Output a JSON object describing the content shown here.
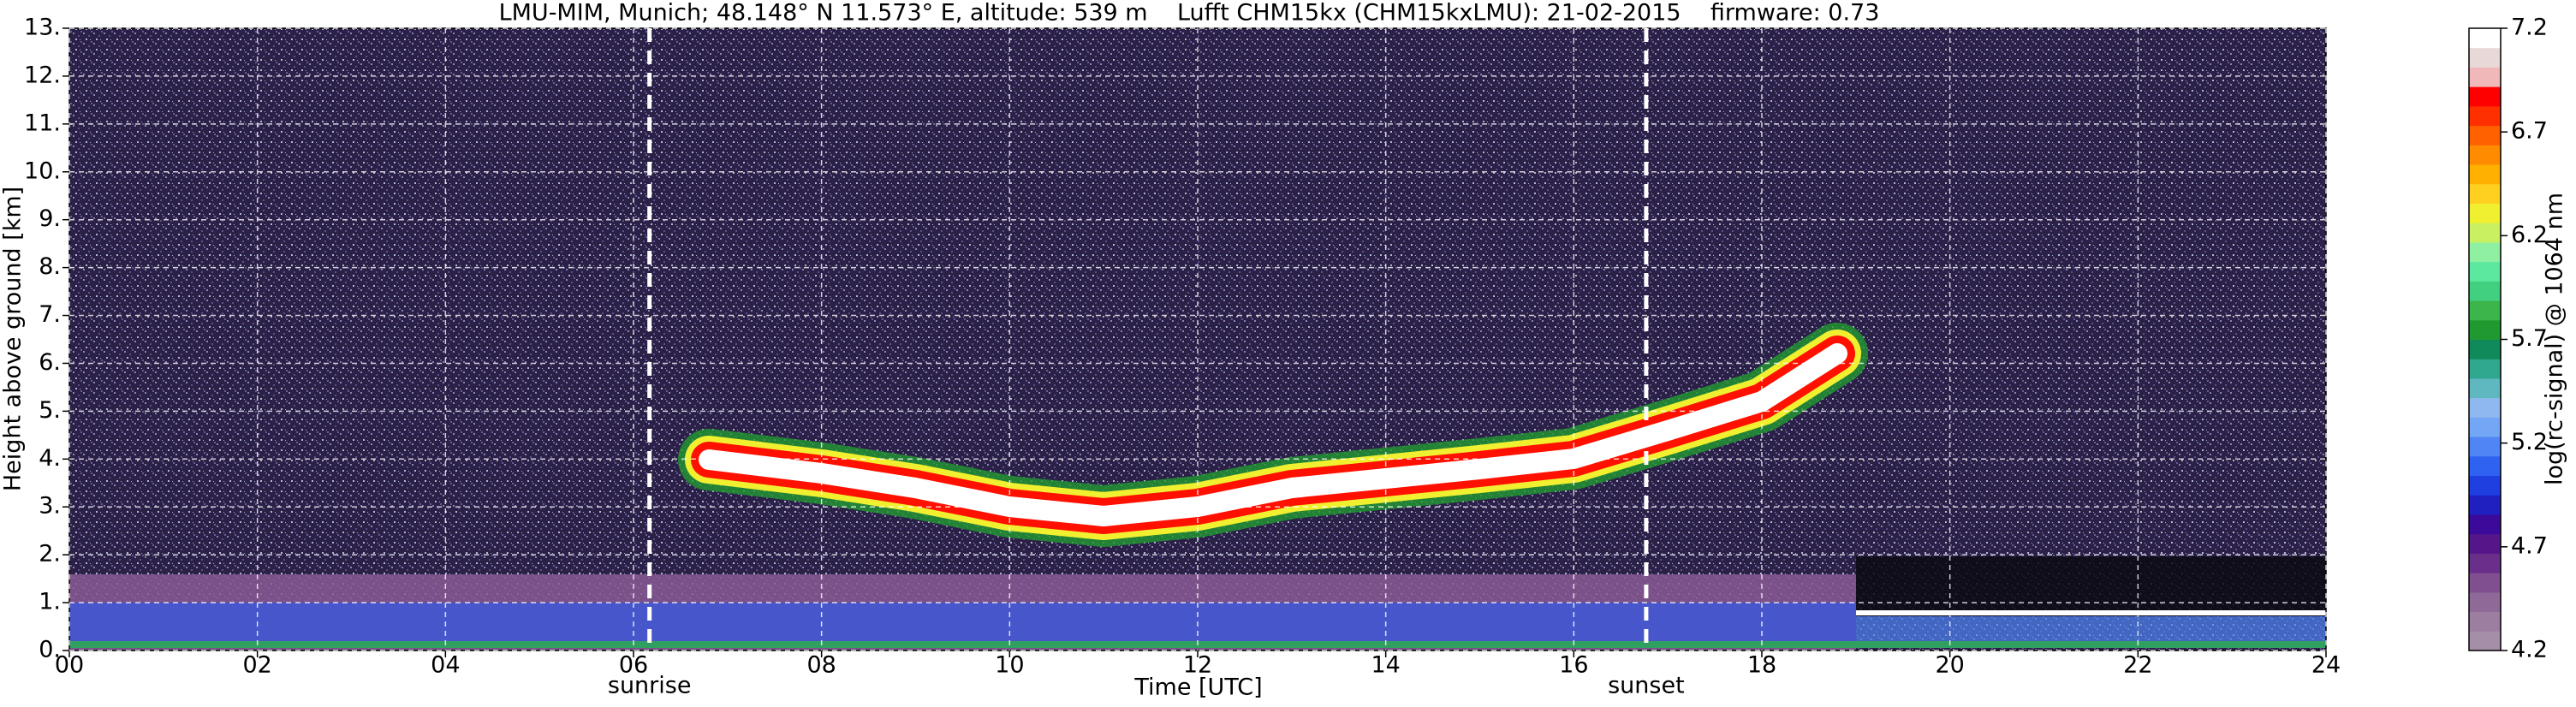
{
  "chart_data": {
    "type": "heatmap",
    "title": "LMU-MIM, Munich; 48.148° N 11.573° E, altitude: 539 m    Lufft CHM15kx (CHM15kxLMU): 21-02-2015    firmware: 0.73",
    "xlabel": "Time [UTC]",
    "ylabel": "Height above ground [km]",
    "xlim": [
      0,
      24
    ],
    "ylim": [
      0,
      13
    ],
    "xticks": [
      {
        "value": 0,
        "label": "00"
      },
      {
        "value": 2,
        "label": "02"
      },
      {
        "value": 4,
        "label": "04"
      },
      {
        "value": 6,
        "label": "06"
      },
      {
        "value": 8,
        "label": "08"
      },
      10,
      12,
      14,
      16,
      18,
      20,
      22,
      24
    ],
    "yticks": [
      {
        "value": 0,
        "label": "0."
      },
      {
        "value": 1,
        "label": "1."
      },
      {
        "value": 2,
        "label": "2."
      },
      {
        "value": 3,
        "label": "3."
      },
      {
        "value": 4,
        "label": "4."
      },
      {
        "value": 5,
        "label": "5."
      },
      {
        "value": 6,
        "label": "6."
      },
      {
        "value": 7,
        "label": "7."
      },
      {
        "value": 8,
        "label": "8."
      },
      {
        "value": 9,
        "label": "9."
      },
      {
        "value": 10,
        "label": "10."
      },
      {
        "value": 11,
        "label": "11."
      },
      {
        "value": 12,
        "label": "12."
      },
      {
        "value": 13,
        "label": "13."
      }
    ],
    "grid": true,
    "annotations": [
      {
        "label": "sunrise",
        "x": 6.17
      },
      {
        "label": "sunset",
        "x": 16.77
      }
    ],
    "colorbar": {
      "label": "log(rc-signal) @ 1064 nm",
      "lim": [
        4.2,
        7.2
      ],
      "ticks": [
        4.2,
        4.7,
        5.2,
        5.7,
        6.2,
        6.7,
        7.2
      ],
      "colors": [
        "#a58fa8",
        "#9c7fa0",
        "#8f6a98",
        "#7f4f90",
        "#6a2f8a",
        "#55168a",
        "#3b0a9a",
        "#2020c0",
        "#1f3fe0",
        "#2f62f0",
        "#4f85f5",
        "#73a6f5",
        "#8fb8f0",
        "#5fb8c0",
        "#30a890",
        "#108a5a",
        "#209a30",
        "#3cb54a",
        "#40d080",
        "#5de8a0",
        "#8ef0a0",
        "#c8f060",
        "#f0f030",
        "#ffd020",
        "#ffb000",
        "#ff8c00",
        "#ff6000",
        "#ff3000",
        "#ff0000",
        "#f0b8b8",
        "#e8d8d8",
        "#ffffff"
      ]
    }
  }
}
